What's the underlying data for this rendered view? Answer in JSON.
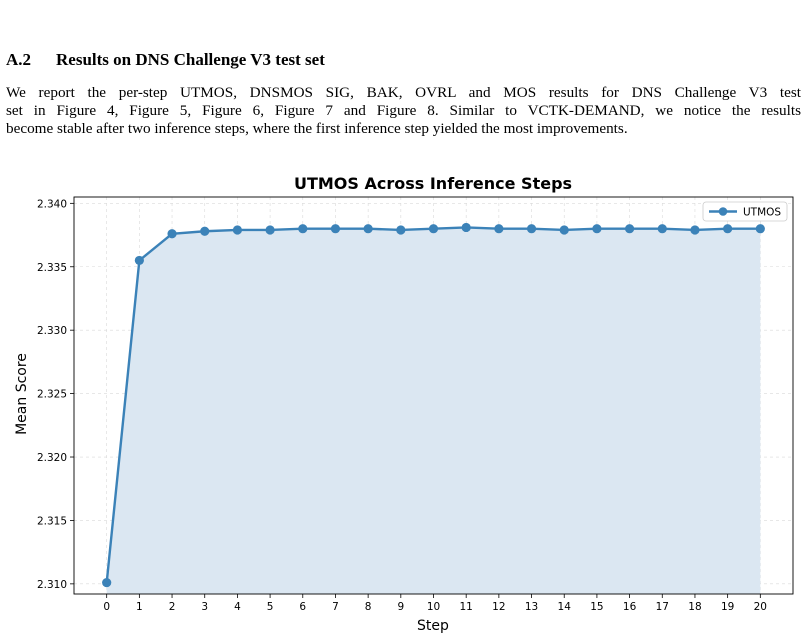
{
  "section": {
    "number": "A.2",
    "title": "Results on DNS Challenge V3 test set"
  },
  "paragraph": {
    "lines": [
      "We report the per-step UTMOS, DNSMOS SIG, BAK, OVRL and MOS results for DNS Challenge V3 test",
      "set in Figure 4, Figure 5, Figure 6, Figure 7 and Figure 8. Similar to VCTK-DEMAND, we notice the results",
      "become stable after two inference steps, where the first inference step yielded the most improvements."
    ]
  },
  "chart_data": {
    "type": "line",
    "title": "UTMOS Across Inference Steps",
    "xlabel": "Step",
    "ylabel": "Mean Score",
    "x": [
      0,
      1,
      2,
      3,
      4,
      5,
      6,
      7,
      8,
      9,
      10,
      11,
      12,
      13,
      14,
      15,
      16,
      17,
      18,
      19,
      20
    ],
    "series": [
      {
        "name": "UTMOS",
        "values": [
          2.3101,
          2.3355,
          2.3376,
          2.3378,
          2.3379,
          2.3379,
          2.338,
          2.338,
          2.338,
          2.3379,
          2.338,
          2.3381,
          2.338,
          2.338,
          2.3379,
          2.338,
          2.338,
          2.338,
          2.3379,
          2.338,
          2.338
        ],
        "color": "#3b82b8",
        "fill_color": "#dbe7f2"
      }
    ],
    "xticks": [
      "0",
      "1",
      "2",
      "3",
      "4",
      "5",
      "6",
      "7",
      "8",
      "9",
      "10",
      "11",
      "12",
      "13",
      "14",
      "15",
      "16",
      "17",
      "18",
      "19",
      "20"
    ],
    "yticks": [
      "2.310",
      "2.315",
      "2.320",
      "2.325",
      "2.330",
      "2.335",
      "2.340"
    ],
    "ytick_values": [
      2.31,
      2.315,
      2.32,
      2.325,
      2.33,
      2.335,
      2.34
    ],
    "ylim": [
      2.3092,
      2.3405
    ],
    "xlim": [
      -1,
      21
    ],
    "grid": true,
    "legend": "top-right"
  }
}
